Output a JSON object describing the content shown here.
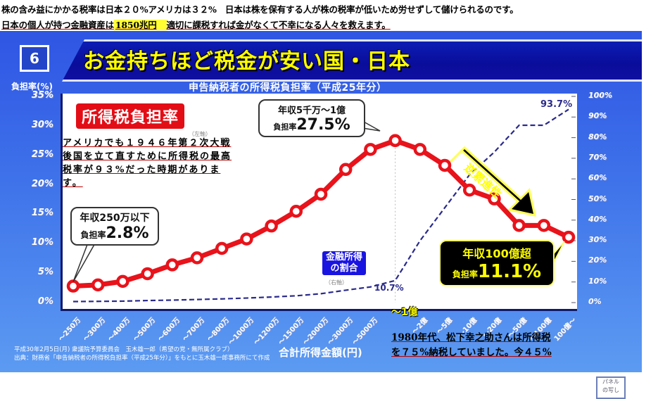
{
  "captions": {
    "line1": "株の含み益にかかる税率は日本２０%アメリカは３２%　日本は株を保有する人が株の税率が低いため労せずして儲けられるのです。",
    "line2_pre": "日本の個人が持つ金融資産は",
    "line2_highlight": "1850兆円",
    "line2_post": "適切に課税すれば金がなくて不幸になる人々を救えます。"
  },
  "panel": {
    "number": "6",
    "title": "お金持ちほど税金が安い国・日本",
    "source_line1": "平成30年2月5日(月) 衆議院予算委員会　玉木雄一郎（希望の党・無所属クラブ）",
    "source_line2": "出典：財務省「申告納税者の所得税負担率（平成25年分）」をもとに玉木雄一郎事務所にて作成",
    "stamp": "パネル\nの写し"
  },
  "annotations": {
    "red_badge": "所得税負担率",
    "left_axis_note": "（左軸）",
    "right_axis_note": "（右軸）",
    "blue_badge_line1": "金融所得",
    "blue_badge_line2": "の割合",
    "bubble_low_line1": "年収250万以下",
    "bubble_low_line2_label": "負担率",
    "bubble_low_value": "2.8%",
    "bubble_peak_line1": "年収5千万〜1億",
    "bubble_peak_line2_label": "負担率",
    "bubble_peak_value": "27.5%",
    "bubble_top_line1": "年収100億超",
    "bubble_top_line2_label": "負担率",
    "bubble_top_value": "11.1%",
    "arrow_label": "逆累進性",
    "financial_low": "10.7%",
    "financial_high": "93.7%",
    "peak_marker": "〜1億",
    "overlay_note": [
      "アメリカでも１９４６年第２次大戦",
      "後国を立て直すために所得税の最高",
      "税率が９３%だった時期がありま",
      "す。"
    ],
    "bottom_note": [
      "1980年代、松下幸之助さんは所得税",
      "を７５%納税していました。今４５%"
    ]
  },
  "chart_data": {
    "type": "line",
    "title": "申告納税者の所得税負担率（平成25年分）",
    "xlabel": "合計所得金額(円)",
    "ylabel": "負担率(%)",
    "ylabel_right": "金融所得の割合",
    "ylim": [
      0,
      35
    ],
    "ylim_right": [
      0,
      100
    ],
    "yticks_left": [
      "0%",
      "5%",
      "10%",
      "15%",
      "20%",
      "25%",
      "30%",
      "35%"
    ],
    "yticks_right": [
      "0%",
      "10%",
      "20%",
      "30%",
      "40%",
      "50%",
      "60%",
      "70%",
      "80%",
      "90%",
      "100%"
    ],
    "categories": [
      "〜250万",
      "〜300万",
      "〜400万",
      "〜500万",
      "〜600万",
      "〜700万",
      "〜800万",
      "〜1000万",
      "〜1200万",
      "〜1500万",
      "〜2000万",
      "〜3000万",
      "〜5000万",
      "〜1億",
      "〜2億",
      "〜5億",
      "〜10億",
      "〜20億",
      "〜50億",
      "〜100億",
      "100億〜"
    ],
    "series": [
      {
        "name": "所得税負担率（左軸）",
        "axis": "left",
        "color": "#e8131b",
        "values": [
          2.8,
          3.0,
          3.6,
          4.9,
          6.4,
          7.6,
          9.2,
          10.8,
          13.0,
          15.5,
          18.4,
          22.6,
          26.0,
          27.5,
          26.0,
          23.3,
          19.1,
          17.6,
          13.1,
          13.1,
          11.1
        ]
      },
      {
        "name": "金融所得の割合（右軸）",
        "axis": "right",
        "color": "#2a2a8c",
        "style": "dashed",
        "values": [
          0.5,
          0.6,
          0.7,
          1.0,
          1.2,
          1.5,
          1.8,
          2.2,
          2.7,
          3.3,
          4.3,
          6.0,
          7.6,
          10.7,
          30.0,
          46.0,
          62.0,
          73.0,
          86.0,
          86.0,
          93.7
        ]
      }
    ],
    "legend_position": "inline-annotations",
    "grid": false
  }
}
